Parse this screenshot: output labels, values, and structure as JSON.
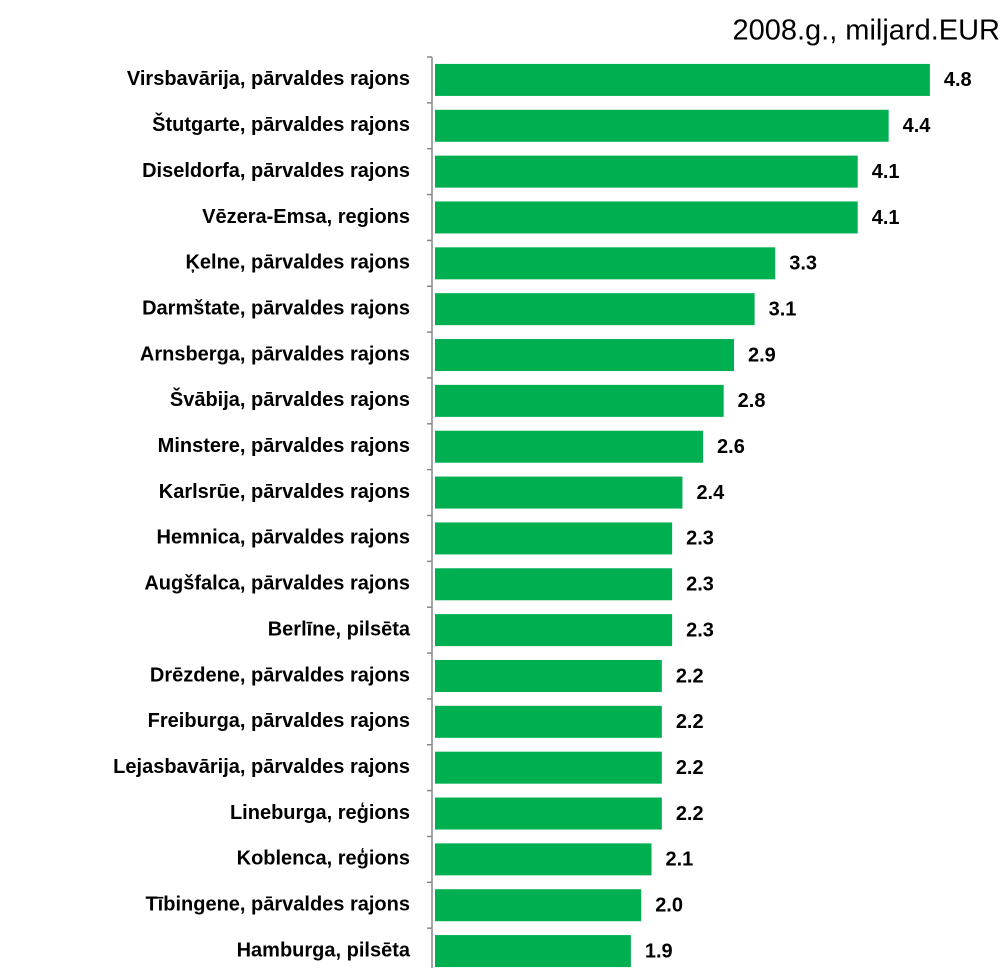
{
  "chart_data": {
    "type": "bar",
    "orientation": "horizontal",
    "title": "2008.g., miljard.EUR",
    "categories": [
      "Virsbavārija, pārvaldes rajons",
      "Štutgarte, pārvaldes rajons",
      "Diseldorfa, pārvaldes rajons",
      "Vēzera-Emsa, regions",
      "Ķelne, pārvaldes rajons",
      "Darmštate, pārvaldes rajons",
      "Arnsberga, pārvaldes rajons",
      "Švābija, pārvaldes rajons",
      "Minstere, pārvaldes rajons",
      "Karlsrūe, pārvaldes rajons",
      "Hemnica, pārvaldes rajons",
      "Augšfalca, pārvaldes rajons",
      "Berlīne,  pilsēta",
      "Drēzdene, pārvaldes rajons",
      "Freiburga, pārvaldes rajons",
      "Lejasbavārija, pārvaldes rajons",
      "Lineburga, reģions",
      "Koblenca, reģions",
      "Tībingene, pārvaldes rajons",
      "Hamburga, pilsēta"
    ],
    "values": [
      4.8,
      4.4,
      4.1,
      4.1,
      3.3,
      3.1,
      2.9,
      2.8,
      2.6,
      2.4,
      2.3,
      2.3,
      2.3,
      2.2,
      2.2,
      2.2,
      2.2,
      2.1,
      2.0,
      1.9
    ],
    "value_labels": [
      "4.8",
      "4.4",
      "4.1",
      "4.1",
      "3.3",
      "3.1",
      "2.9",
      "2.8",
      "2.6",
      "2.4",
      "2.3",
      "2.3",
      "2.3",
      "2.2",
      "2.2",
      "2.2",
      "2.2",
      "2.1",
      "2.0",
      "1.9"
    ],
    "color": "#00b050"
  }
}
